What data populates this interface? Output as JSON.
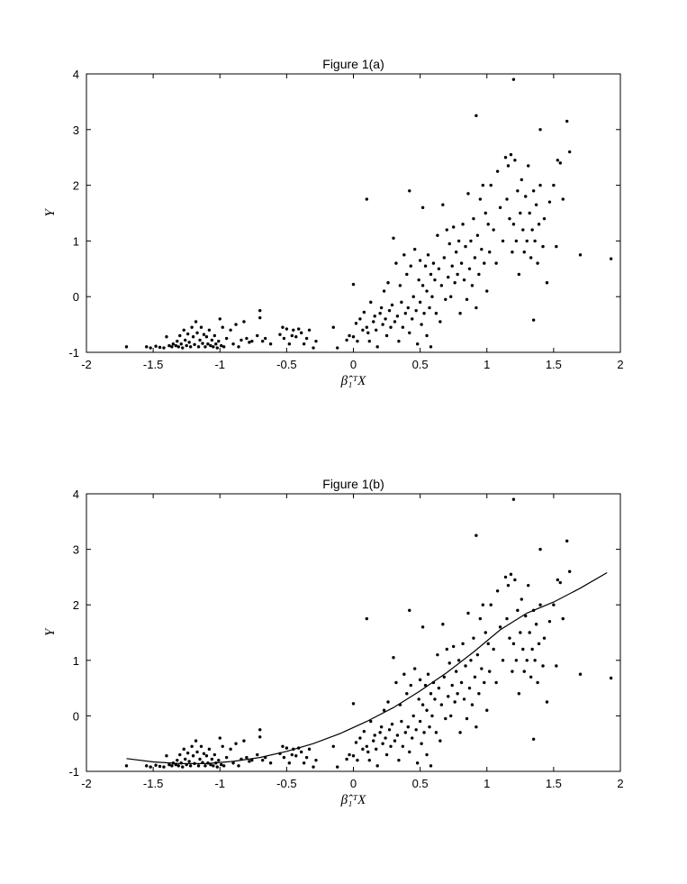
{
  "chart_data": [
    {
      "type": "scatter",
      "title": "Figure 1(a)",
      "xlabel": "β̂₁ᵀX",
      "ylabel": "Y",
      "xlim": [
        -2,
        2
      ],
      "ylim": [
        -1,
        4
      ],
      "xticks": [
        "-2",
        "-1.5",
        "-1",
        "-0.5",
        "0",
        "0.5",
        "1",
        "1.5",
        "2"
      ],
      "yticks": [
        "-1",
        "0",
        "1",
        "2",
        "3",
        "4"
      ],
      "grid": false,
      "series": [
        {
          "marker": "dot",
          "color": "#000000",
          "points": [
            [
              -1.7,
              -0.9
            ],
            [
              -1.55,
              -0.9
            ],
            [
              -1.52,
              -0.92
            ],
            [
              -1.48,
              -0.89
            ],
            [
              -1.45,
              -0.91
            ],
            [
              -1.42,
              -0.92
            ],
            [
              -1.4,
              -0.72
            ],
            [
              -1.38,
              -0.88
            ],
            [
              -1.36,
              -0.9
            ],
            [
              -1.35,
              -0.85
            ],
            [
              -1.33,
              -0.88
            ],
            [
              -1.32,
              -0.8
            ],
            [
              -1.31,
              -0.9
            ],
            [
              -1.3,
              -0.7
            ],
            [
              -1.29,
              -0.85
            ],
            [
              -1.28,
              -0.92
            ],
            [
              -1.27,
              -0.6
            ],
            [
              -1.26,
              -0.78
            ],
            [
              -1.25,
              -0.88
            ],
            [
              -1.24,
              -0.67
            ],
            [
              -1.23,
              -0.82
            ],
            [
              -1.22,
              -0.9
            ],
            [
              -1.21,
              -0.55
            ],
            [
              -1.2,
              -0.72
            ],
            [
              -1.19,
              -0.86
            ],
            [
              -1.18,
              -0.45
            ],
            [
              -1.17,
              -0.65
            ],
            [
              -1.16,
              -0.9
            ],
            [
              -1.15,
              -0.78
            ],
            [
              -1.14,
              -0.55
            ],
            [
              -1.13,
              -0.84
            ],
            [
              -1.12,
              -0.68
            ],
            [
              -1.11,
              -0.9
            ],
            [
              -1.1,
              -0.72
            ],
            [
              -1.09,
              -0.85
            ],
            [
              -1.08,
              -0.6
            ],
            [
              -1.07,
              -0.88
            ],
            [
              -1.06,
              -0.78
            ],
            [
              -1.05,
              -0.9
            ],
            [
              -1.04,
              -0.7
            ],
            [
              -1.03,
              -0.85
            ],
            [
              -1.02,
              -0.92
            ],
            [
              -1.01,
              -0.8
            ],
            [
              -1.0,
              -0.4
            ],
            [
              -0.99,
              -0.88
            ],
            [
              -0.98,
              -0.55
            ],
            [
              -0.97,
              -0.9
            ],
            [
              -0.95,
              -0.75
            ],
            [
              -0.92,
              -0.6
            ],
            [
              -0.9,
              -0.85
            ],
            [
              -0.88,
              -0.5
            ],
            [
              -0.86,
              -0.9
            ],
            [
              -0.84,
              -0.78
            ],
            [
              -0.82,
              -0.45
            ],
            [
              -0.8,
              -0.75
            ],
            [
              -0.78,
              -0.82
            ],
            [
              -0.76,
              -0.8
            ],
            [
              -0.72,
              -0.7
            ],
            [
              -0.7,
              -0.25
            ],
            [
              -0.7,
              -0.38
            ],
            [
              -0.68,
              -0.8
            ],
            [
              -0.66,
              -0.75
            ],
            [
              -0.62,
              -0.85
            ],
            [
              -0.55,
              -0.68
            ],
            [
              -0.53,
              -0.55
            ],
            [
              -0.52,
              -0.75
            ],
            [
              -0.5,
              -0.58
            ],
            [
              -0.48,
              -0.85
            ],
            [
              -0.46,
              -0.7
            ],
            [
              -0.45,
              -0.6
            ],
            [
              -0.43,
              -0.72
            ],
            [
              -0.41,
              -0.58
            ],
            [
              -0.39,
              -0.65
            ],
            [
              -0.37,
              -0.85
            ],
            [
              -0.35,
              -0.75
            ],
            [
              -0.33,
              -0.6
            ],
            [
              -0.3,
              -0.92
            ],
            [
              -0.28,
              -0.8
            ],
            [
              -0.15,
              -0.55
            ],
            [
              -0.12,
              -0.92
            ],
            [
              -0.05,
              -0.78
            ],
            [
              -0.03,
              -0.7
            ],
            [
              0.0,
              0.22
            ],
            [
              0.0,
              -0.72
            ],
            [
              0.02,
              -0.48
            ],
            [
              0.03,
              -0.8
            ],
            [
              0.05,
              -0.4
            ],
            [
              0.07,
              -0.6
            ],
            [
              0.08,
              -0.28
            ],
            [
              0.1,
              1.75
            ],
            [
              0.1,
              -0.55
            ],
            [
              0.11,
              -0.65
            ],
            [
              0.12,
              -0.8
            ],
            [
              0.13,
              -0.1
            ],
            [
              0.15,
              -0.45
            ],
            [
              0.16,
              -0.35
            ],
            [
              0.17,
              -0.6
            ],
            [
              0.18,
              -0.9
            ],
            [
              0.2,
              -0.3
            ],
            [
              0.21,
              -0.2
            ],
            [
              0.22,
              -0.5
            ],
            [
              0.23,
              0.1
            ],
            [
              0.24,
              -0.4
            ],
            [
              0.25,
              -0.7
            ],
            [
              0.26,
              0.25
            ],
            [
              0.27,
              -0.25
            ],
            [
              0.28,
              -0.55
            ],
            [
              0.29,
              -0.15
            ],
            [
              0.3,
              1.05
            ],
            [
              0.31,
              -0.45
            ],
            [
              0.32,
              0.6
            ],
            [
              0.33,
              -0.35
            ],
            [
              0.34,
              -0.8
            ],
            [
              0.35,
              0.2
            ],
            [
              0.36,
              -0.1
            ],
            [
              0.37,
              -0.55
            ],
            [
              0.38,
              0.75
            ],
            [
              0.39,
              -0.3
            ],
            [
              0.4,
              0.4
            ],
            [
              0.41,
              -0.2
            ],
            [
              0.42,
              1.9
            ],
            [
              0.42,
              -0.65
            ],
            [
              0.43,
              0.55
            ],
            [
              0.44,
              -0.4
            ],
            [
              0.45,
              0.0
            ],
            [
              0.46,
              0.85
            ],
            [
              0.47,
              -0.25
            ],
            [
              0.48,
              -0.85
            ],
            [
              0.49,
              0.3
            ],
            [
              0.5,
              -0.1
            ],
            [
              0.5,
              0.65
            ],
            [
              0.51,
              -0.5
            ],
            [
              0.52,
              1.6
            ],
            [
              0.52,
              0.2
            ],
            [
              0.53,
              -0.3
            ],
            [
              0.54,
              0.55
            ],
            [
              0.55,
              0.1
            ],
            [
              0.55,
              -0.7
            ],
            [
              0.56,
              0.75
            ],
            [
              0.57,
              -0.2
            ],
            [
              0.58,
              0.4
            ],
            [
              0.58,
              -0.9
            ],
            [
              0.59,
              0.0
            ],
            [
              0.6,
              0.6
            ],
            [
              0.61,
              0.3
            ],
            [
              0.62,
              -0.3
            ],
            [
              0.63,
              1.1
            ],
            [
              0.64,
              0.5
            ],
            [
              0.65,
              -0.45
            ],
            [
              0.66,
              0.2
            ],
            [
              0.67,
              1.65
            ],
            [
              0.68,
              0.7
            ],
            [
              0.69,
              -0.05
            ],
            [
              0.7,
              1.2
            ],
            [
              0.71,
              0.35
            ],
            [
              0.72,
              0.95
            ],
            [
              0.73,
              0.0
            ],
            [
              0.74,
              0.55
            ],
            [
              0.75,
              1.25
            ],
            [
              0.76,
              0.25
            ],
            [
              0.77,
              0.8
            ],
            [
              0.78,
              0.4
            ],
            [
              0.79,
              1.0
            ],
            [
              0.8,
              -0.3
            ],
            [
              0.81,
              0.6
            ],
            [
              0.82,
              1.3
            ],
            [
              0.83,
              0.3
            ],
            [
              0.84,
              0.9
            ],
            [
              0.85,
              -0.05
            ],
            [
              0.86,
              1.85
            ],
            [
              0.87,
              0.5
            ],
            [
              0.88,
              1.0
            ],
            [
              0.89,
              0.2
            ],
            [
              0.9,
              1.4
            ],
            [
              0.91,
              0.7
            ],
            [
              0.92,
              3.25
            ],
            [
              0.92,
              -0.2
            ],
            [
              0.93,
              1.1
            ],
            [
              0.94,
              0.4
            ],
            [
              0.95,
              1.75
            ],
            [
              0.96,
              0.85
            ],
            [
              0.97,
              2.0
            ],
            [
              0.98,
              0.6
            ],
            [
              0.99,
              1.5
            ],
            [
              1.0,
              0.1
            ],
            [
              1.01,
              1.3
            ],
            [
              1.02,
              0.8
            ],
            [
              1.03,
              2.0
            ],
            [
              1.05,
              1.2
            ],
            [
              1.07,
              0.6
            ],
            [
              1.08,
              2.25
            ],
            [
              1.1,
              1.6
            ],
            [
              1.12,
              1.0
            ],
            [
              1.14,
              2.5
            ],
            [
              1.15,
              1.75
            ],
            [
              1.16,
              2.35
            ],
            [
              1.17,
              1.4
            ],
            [
              1.18,
              2.55
            ],
            [
              1.19,
              0.8
            ],
            [
              1.2,
              3.9
            ],
            [
              1.2,
              1.3
            ],
            [
              1.21,
              2.45
            ],
            [
              1.22,
              1.0
            ],
            [
              1.23,
              1.9
            ],
            [
              1.24,
              0.4
            ],
            [
              1.25,
              1.5
            ],
            [
              1.26,
              2.1
            ],
            [
              1.27,
              1.2
            ],
            [
              1.28,
              0.8
            ],
            [
              1.29,
              1.8
            ],
            [
              1.3,
              1.0
            ],
            [
              1.31,
              2.35
            ],
            [
              1.32,
              1.5
            ],
            [
              1.33,
              0.7
            ],
            [
              1.34,
              1.2
            ],
            [
              1.35,
              1.9
            ],
            [
              1.35,
              -0.42
            ],
            [
              1.36,
              1.0
            ],
            [
              1.37,
              1.65
            ],
            [
              1.38,
              0.6
            ],
            [
              1.39,
              1.3
            ],
            [
              1.4,
              3.0
            ],
            [
              1.4,
              2.0
            ],
            [
              1.42,
              0.9
            ],
            [
              1.43,
              1.4
            ],
            [
              1.45,
              0.25
            ],
            [
              1.47,
              1.7
            ],
            [
              1.5,
              2.0
            ],
            [
              1.52,
              0.9
            ],
            [
              1.53,
              2.45
            ],
            [
              1.55,
              2.4
            ],
            [
              1.57,
              1.75
            ],
            [
              1.6,
              3.15
            ],
            [
              1.62,
              2.6
            ],
            [
              1.7,
              0.75
            ],
            [
              1.93,
              0.68
            ]
          ]
        }
      ]
    },
    {
      "type": "scatter",
      "title": "Figure 1(b)",
      "xlabel": "β̂₁ᵀX",
      "ylabel": "Y",
      "xlim": [
        -2,
        2
      ],
      "ylim": [
        -1,
        4
      ],
      "xticks": [
        "-2",
        "-1.5",
        "-1",
        "-0.5",
        "0",
        "0.5",
        "1",
        "1.5",
        "2"
      ],
      "yticks": [
        "-1",
        "0",
        "1",
        "2",
        "3",
        "4"
      ],
      "grid": false,
      "series": [
        {
          "marker": "dot",
          "color": "#000000",
          "points": "same as Figure 1(a)"
        },
        {
          "type": "line",
          "color": "#000000",
          "points": [
            [
              -1.7,
              -0.77
            ],
            [
              -1.5,
              -0.83
            ],
            [
              -1.3,
              -0.86
            ],
            [
              -1.1,
              -0.86
            ],
            [
              -0.9,
              -0.82
            ],
            [
              -0.7,
              -0.75
            ],
            [
              -0.5,
              -0.64
            ],
            [
              -0.3,
              -0.5
            ],
            [
              -0.1,
              -0.32
            ],
            [
              0.1,
              -0.1
            ],
            [
              0.3,
              0.15
            ],
            [
              0.5,
              0.45
            ],
            [
              0.7,
              0.78
            ],
            [
              0.9,
              1.15
            ],
            [
              1.1,
              1.55
            ],
            [
              1.3,
              1.85
            ],
            [
              1.5,
              2.05
            ],
            [
              1.7,
              2.3
            ],
            [
              1.9,
              2.58
            ]
          ]
        }
      ]
    }
  ]
}
